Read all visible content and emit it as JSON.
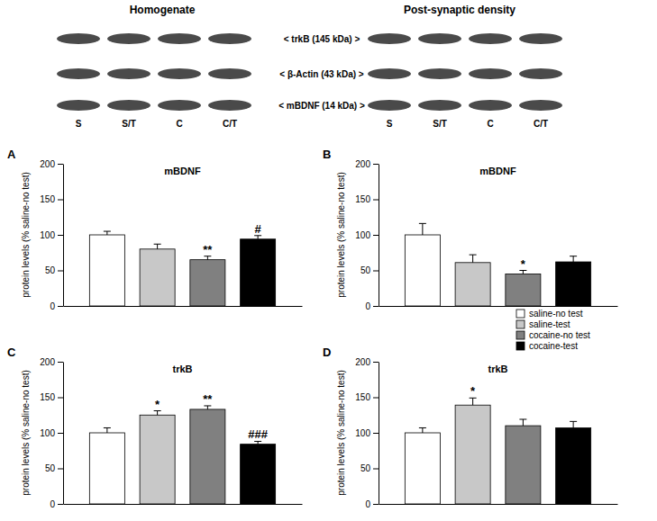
{
  "blot_panel": {
    "titles": [
      "Homogenate",
      "Post-synaptic density"
    ],
    "bands": [
      "< trkB (145 kDa) >",
      "< β-Actin (43 kDa) >",
      "< mBDNF (14 kDa) >"
    ],
    "lanes": [
      "S",
      "S/T",
      "C",
      "C/T"
    ]
  },
  "chart_data": [
    {
      "type": "bar",
      "panel": "A",
      "title": "mBDNF",
      "y_label": "protein levels (% saline-no test)",
      "categories": [
        null
      ],
      "ylim": [
        0,
        200
      ],
      "yticks": [
        0,
        50,
        100,
        150,
        200
      ],
      "series": [
        {
          "color": "#ffffff",
          "values": [
            100
          ],
          "errors": [
            5
          ]
        },
        {
          "color": "#c8c8c8",
          "values": [
            80
          ],
          "errors": [
            7
          ]
        },
        {
          "color": "#808080",
          "values": [
            65
          ],
          "errors": [
            5
          ]
        },
        {
          "color": "#000000",
          "values": [
            94
          ],
          "errors": [
            5
          ]
        }
      ],
      "annotations": [
        {
          "series": 2,
          "text": "**"
        },
        {
          "series": 3,
          "text": "#"
        }
      ]
    },
    {
      "type": "bar",
      "panel": "B",
      "title": "mBDNF",
      "y_label": "protein levels (% saline-no test)",
      "categories": [
        null
      ],
      "ylim": [
        0,
        200
      ],
      "yticks": [
        0,
        50,
        100,
        150,
        200
      ],
      "series": [
        {
          "color": "#ffffff",
          "values": [
            100
          ],
          "errors": [
            16
          ]
        },
        {
          "color": "#c8c8c8",
          "values": [
            61
          ],
          "errors": [
            11
          ]
        },
        {
          "color": "#808080",
          "values": [
            45
          ],
          "errors": [
            5
          ]
        },
        {
          "color": "#000000",
          "values": [
            62
          ],
          "errors": [
            8
          ]
        }
      ],
      "annotations": [
        {
          "series": 2,
          "text": "*"
        }
      ]
    },
    {
      "type": "bar",
      "panel": "C",
      "title": "trkB",
      "y_label": "protein levels (% saline-no test)",
      "categories": [
        null
      ],
      "ylim": [
        0,
        200
      ],
      "yticks": [
        0,
        50,
        100,
        150,
        200
      ],
      "series": [
        {
          "color": "#ffffff",
          "values": [
            100
          ],
          "errors": [
            7
          ]
        },
        {
          "color": "#c8c8c8",
          "values": [
            125
          ],
          "errors": [
            6
          ]
        },
        {
          "color": "#808080",
          "values": [
            133
          ],
          "errors": [
            5
          ]
        },
        {
          "color": "#000000",
          "values": [
            84
          ],
          "errors": [
            4
          ]
        }
      ],
      "annotations": [
        {
          "series": 1,
          "text": "*"
        },
        {
          "series": 2,
          "text": "**"
        },
        {
          "series": 3,
          "text": "###"
        }
      ]
    },
    {
      "type": "bar",
      "panel": "D",
      "title": "trkB",
      "y_label": "protein levels (% saline-no test)",
      "categories": [
        null
      ],
      "ylim": [
        0,
        200
      ],
      "yticks": [
        0,
        50,
        100,
        150,
        200
      ],
      "legend": "top-right",
      "series": [
        {
          "name": "saline-no test",
          "color": "#ffffff",
          "values": [
            100
          ],
          "errors": [
            7
          ]
        },
        {
          "name": "saline-test",
          "color": "#c8c8c8",
          "values": [
            139
          ],
          "errors": [
            10
          ]
        },
        {
          "name": "cocaine-no test",
          "color": "#808080",
          "values": [
            110
          ],
          "errors": [
            9
          ]
        },
        {
          "name": "cocaine-test",
          "color": "#000000",
          "values": [
            107
          ],
          "errors": [
            9
          ]
        }
      ],
      "annotations": [
        {
          "series": 1,
          "text": "*"
        }
      ]
    }
  ]
}
